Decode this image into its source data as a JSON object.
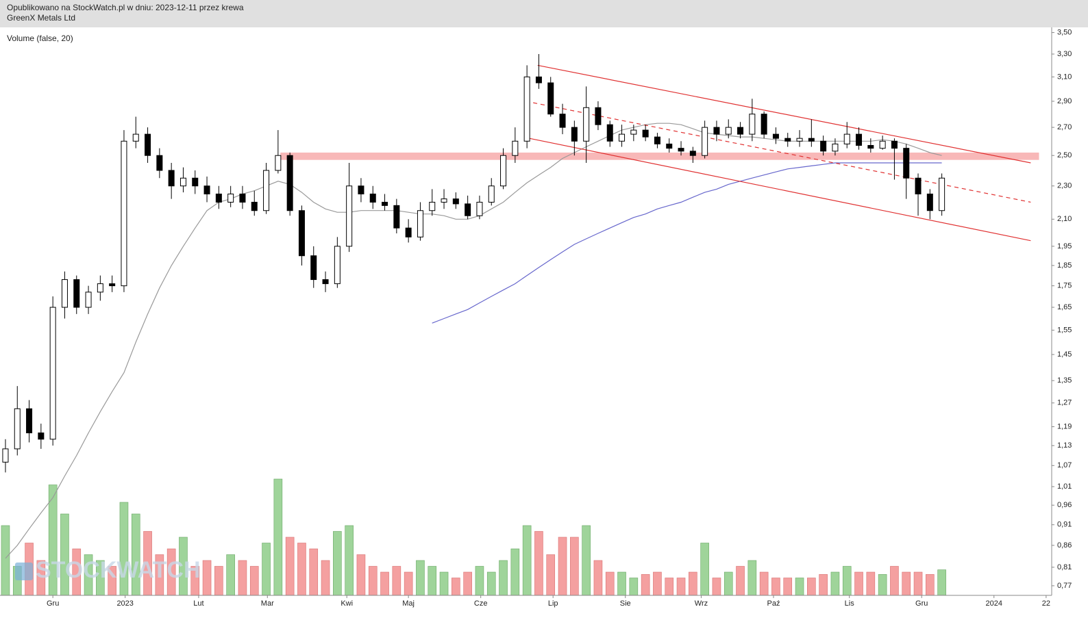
{
  "chart_data": {
    "type": "candlestick",
    "published": "Opublikowano na StockWatch.pl w dniu: 2023-12-11 przez krewa",
    "title": "GreenX Metals Ltd",
    "indicator_label": "Volume (false, 20)",
    "watermark": "STOCKWATCH",
    "log_scale": true,
    "ylim": [
      0.75,
      3.55
    ],
    "yticks": [
      {
        "value": 3.5,
        "label": "3,50"
      },
      {
        "value": 3.3,
        "label": "3,30"
      },
      {
        "value": 3.1,
        "label": "3,10"
      },
      {
        "value": 2.9,
        "label": "2,90"
      },
      {
        "value": 2.7,
        "label": "2,70"
      },
      {
        "value": 2.5,
        "label": "2,50"
      },
      {
        "value": 2.3,
        "label": "2,30"
      },
      {
        "value": 2.1,
        "label": "2,10"
      },
      {
        "value": 1.95,
        "label": "1,95"
      },
      {
        "value": 1.85,
        "label": "1,85"
      },
      {
        "value": 1.75,
        "label": "1,75"
      },
      {
        "value": 1.65,
        "label": "1,65"
      },
      {
        "value": 1.55,
        "label": "1,55"
      },
      {
        "value": 1.45,
        "label": "1,45"
      },
      {
        "value": 1.35,
        "label": "1,35"
      },
      {
        "value": 1.27,
        "label": "1,27"
      },
      {
        "value": 1.19,
        "label": "1,19"
      },
      {
        "value": 1.13,
        "label": "1,13"
      },
      {
        "value": 1.07,
        "label": "1,07"
      },
      {
        "value": 1.01,
        "label": "1,01"
      },
      {
        "value": 0.96,
        "label": "0,96"
      },
      {
        "value": 0.91,
        "label": "0,91"
      },
      {
        "value": 0.86,
        "label": "0,86"
      },
      {
        "value": 0.81,
        "label": "0,81"
      },
      {
        "value": 0.77,
        "label": "0,77"
      }
    ],
    "xlim": [
      -0.46,
      88.27
    ],
    "xticks": [
      {
        "value": 4,
        "label": "Gru"
      },
      {
        "value": 10.1,
        "label": "2023"
      },
      {
        "value": 16.3,
        "label": "Lut"
      },
      {
        "value": 22.1,
        "label": "Mar"
      },
      {
        "value": 28.8,
        "label": "Kwi"
      },
      {
        "value": 34,
        "label": "Maj"
      },
      {
        "value": 40.1,
        "label": "Cze"
      },
      {
        "value": 46.2,
        "label": "Lip"
      },
      {
        "value": 52.3,
        "label": "Sie"
      },
      {
        "value": 58.7,
        "label": "Wrz"
      },
      {
        "value": 64.8,
        "label": "Paź"
      },
      {
        "value": 71.2,
        "label": "Lis"
      },
      {
        "value": 77.3,
        "label": "Gru"
      },
      {
        "value": 83.4,
        "label": "2024"
      },
      {
        "value": 87.8,
        "label": "22"
      }
    ],
    "open": [
      1.08,
      1.12,
      1.25,
      1.17,
      1.15,
      1.65,
      1.78,
      1.65,
      1.72,
      1.76,
      1.75,
      2.6,
      2.65,
      2.5,
      2.4,
      2.3,
      2.35,
      2.3,
      2.25,
      2.2,
      2.25,
      2.2,
      2.15,
      2.4,
      2.5,
      2.15,
      1.9,
      1.78,
      1.76,
      1.95,
      2.3,
      2.25,
      2.2,
      2.18,
      2.05,
      2.0,
      2.15,
      2.2,
      2.22,
      2.19,
      2.12,
      2.2,
      2.3,
      2.5,
      2.6,
      3.1,
      3.05,
      2.8,
      2.7,
      2.6,
      2.85,
      2.72,
      2.6,
      2.65,
      2.68,
      2.63,
      2.58,
      2.55,
      2.53,
      2.5,
      2.7,
      2.65,
      2.7,
      2.65,
      2.8,
      2.65,
      2.62,
      2.6,
      2.62,
      2.6,
      2.53,
      2.58,
      2.65,
      2.57,
      2.55,
      2.6,
      2.55,
      2.35,
      2.25,
      2.15
    ],
    "high": [
      1.15,
      1.33,
      1.28,
      1.2,
      1.7,
      1.82,
      1.8,
      1.75,
      1.8,
      1.8,
      2.68,
      2.78,
      2.7,
      2.55,
      2.45,
      2.42,
      2.4,
      2.36,
      2.3,
      2.3,
      2.3,
      2.27,
      2.45,
      2.68,
      2.52,
      2.18,
      1.95,
      1.82,
      2.0,
      2.45,
      2.35,
      2.3,
      2.25,
      2.22,
      2.1,
      2.2,
      2.28,
      2.28,
      2.26,
      2.24,
      2.24,
      2.35,
      2.55,
      2.7,
      3.2,
      3.3,
      3.1,
      2.88,
      2.75,
      3.02,
      2.9,
      2.75,
      2.72,
      2.72,
      2.72,
      2.66,
      2.62,
      2.6,
      2.56,
      2.75,
      2.75,
      2.76,
      2.74,
      2.92,
      2.82,
      2.7,
      2.66,
      2.68,
      2.76,
      2.64,
      2.62,
      2.74,
      2.7,
      2.62,
      2.64,
      2.62,
      2.58,
      2.38,
      2.28,
      2.38
    ],
    "low": [
      1.05,
      1.1,
      1.14,
      1.12,
      1.13,
      1.6,
      1.62,
      1.62,
      1.68,
      1.72,
      1.72,
      2.55,
      2.45,
      2.35,
      2.22,
      2.26,
      2.25,
      2.2,
      2.16,
      2.17,
      2.16,
      2.12,
      2.13,
      2.38,
      2.12,
      1.85,
      1.74,
      1.72,
      1.74,
      1.92,
      2.2,
      2.16,
      2.15,
      2.02,
      1.97,
      1.98,
      2.12,
      2.16,
      2.16,
      2.1,
      2.1,
      2.18,
      2.28,
      2.45,
      2.55,
      3.0,
      2.78,
      2.65,
      2.5,
      2.45,
      2.68,
      2.56,
      2.56,
      2.6,
      2.6,
      2.55,
      2.52,
      2.5,
      2.45,
      2.48,
      2.6,
      2.62,
      2.62,
      2.6,
      2.62,
      2.58,
      2.56,
      2.56,
      2.56,
      2.5,
      2.5,
      2.55,
      2.54,
      2.52,
      2.54,
      2.34,
      2.22,
      2.12,
      2.1,
      2.12
    ],
    "close": [
      1.12,
      1.25,
      1.17,
      1.15,
      1.65,
      1.78,
      1.65,
      1.72,
      1.76,
      1.75,
      2.6,
      2.65,
      2.5,
      2.4,
      2.3,
      2.35,
      2.3,
      2.25,
      2.2,
      2.25,
      2.2,
      2.15,
      2.4,
      2.5,
      2.15,
      1.9,
      1.78,
      1.76,
      1.95,
      2.3,
      2.25,
      2.2,
      2.18,
      2.05,
      2.0,
      2.15,
      2.2,
      2.22,
      2.19,
      2.12,
      2.2,
      2.3,
      2.5,
      2.6,
      3.1,
      3.05,
      2.8,
      2.7,
      2.6,
      2.85,
      2.72,
      2.6,
      2.65,
      2.68,
      2.63,
      2.58,
      2.55,
      2.53,
      2.5,
      2.7,
      2.65,
      2.7,
      2.65,
      2.8,
      2.65,
      2.62,
      2.6,
      2.62,
      2.6,
      2.53,
      2.58,
      2.65,
      2.57,
      2.55,
      2.6,
      2.55,
      2.35,
      2.25,
      2.15,
      2.35
    ],
    "volume": [
      60,
      25,
      45,
      30,
      95,
      70,
      40,
      35,
      30,
      25,
      80,
      70,
      55,
      35,
      40,
      50,
      25,
      30,
      25,
      35,
      30,
      25,
      45,
      100,
      50,
      45,
      40,
      30,
      55,
      60,
      35,
      25,
      20,
      25,
      20,
      30,
      25,
      20,
      15,
      20,
      25,
      20,
      30,
      40,
      60,
      55,
      35,
      50,
      50,
      60,
      30,
      20,
      20,
      15,
      18,
      20,
      15,
      15,
      20,
      45,
      15,
      20,
      25,
      30,
      20,
      15,
      15,
      15,
      15,
      18,
      20,
      25,
      20,
      20,
      18,
      25,
      20,
      20,
      18,
      22
    ],
    "up_color": "#9fd49a",
    "down_color": "#f4a0a0",
    "series": [
      {
        "color": "#999999",
        "values": [
          0.83,
          0.86,
          0.9,
          0.94,
          0.98,
          1.04,
          1.1,
          1.17,
          1.24,
          1.31,
          1.38,
          1.5,
          1.62,
          1.74,
          1.85,
          1.95,
          2.05,
          2.15,
          2.2,
          2.22,
          2.25,
          2.27,
          2.3,
          2.33,
          2.31,
          2.26,
          2.2,
          2.16,
          2.14,
          2.14,
          2.15,
          2.15,
          2.15,
          2.15,
          2.14,
          2.13,
          2.13,
          2.12,
          2.1,
          2.1,
          2.12,
          2.16,
          2.2,
          2.26,
          2.32,
          2.37,
          2.42,
          2.48,
          2.52,
          2.56,
          2.6,
          2.64,
          2.68,
          2.7,
          2.72,
          2.73,
          2.73,
          2.72,
          2.69,
          2.66,
          2.65,
          2.64,
          2.63,
          2.63,
          2.62,
          2.61,
          2.6,
          2.6,
          2.6,
          2.6,
          2.6,
          2.6,
          2.6,
          2.6,
          2.61,
          2.6,
          2.58,
          2.55,
          2.52,
          2.5
        ]
      },
      {
        "color": "#6666cc",
        "values": [
          null,
          null,
          null,
          null,
          null,
          null,
          null,
          null,
          null,
          null,
          null,
          null,
          null,
          null,
          null,
          null,
          null,
          null,
          null,
          null,
          null,
          null,
          null,
          null,
          null,
          null,
          null,
          null,
          null,
          null,
          null,
          null,
          null,
          null,
          null,
          null,
          1.58,
          1.6,
          1.62,
          1.64,
          1.67,
          1.7,
          1.73,
          1.76,
          1.8,
          1.84,
          1.88,
          1.92,
          1.96,
          1.99,
          2.02,
          2.05,
          2.08,
          2.11,
          2.13,
          2.16,
          2.18,
          2.2,
          2.23,
          2.26,
          2.28,
          2.31,
          2.33,
          2.35,
          2.37,
          2.39,
          2.41,
          2.42,
          2.43,
          2.44,
          2.45,
          2.45,
          2.45,
          2.45,
          2.45,
          2.45,
          2.45,
          2.45,
          2.45,
          2.45
        ]
      }
    ],
    "band": {
      "x": [
        23.2,
        87.2
      ],
      "y": [
        2.47,
        2.52
      ],
      "color": "#f8b8b8"
    },
    "trend_lines": [
      {
        "x": [
          44.9,
          86.5
        ],
        "y": [
          3.2,
          2.45
        ],
        "color": "#e03030",
        "dashed": false
      },
      {
        "x": [
          44.2,
          86.5
        ],
        "y": [
          2.62,
          1.98
        ],
        "color": "#e03030",
        "dashed": false
      },
      {
        "x": [
          43.9,
          86.5
        ],
        "y": [
          2.9,
          2.2
        ],
        "color": "#e03030",
        "dashed": true
      }
    ]
  }
}
